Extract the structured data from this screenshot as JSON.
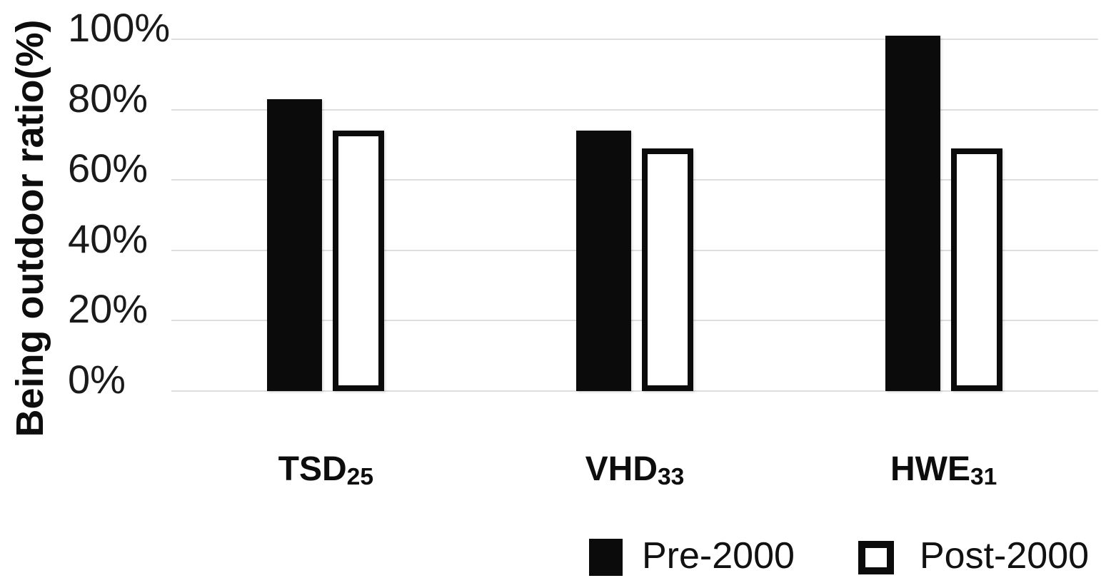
{
  "chart_data": {
    "type": "bar",
    "title": "",
    "xlabel": "",
    "ylabel": "Being outdoor ratio(%)",
    "categories": [
      {
        "base": "TSD",
        "sub": "25"
      },
      {
        "base": "VHD",
        "sub": "33"
      },
      {
        "base": "HWE",
        "sub": "31"
      }
    ],
    "series": [
      {
        "name": "Pre-2000",
        "values": [
          83,
          74,
          101
        ],
        "fill": "#0b0b0b",
        "outline": "#0b0b0b",
        "style": "solid"
      },
      {
        "name": "Post-2000",
        "values": [
          74,
          69,
          69
        ],
        "fill": "#ffffff",
        "outline": "#0b0b0b",
        "style": "outlined"
      }
    ],
    "y_ticks": [
      {
        "label": "0%",
        "value": 0
      },
      {
        "label": "20%",
        "value": 20
      },
      {
        "label": "40%",
        "value": 40
      },
      {
        "label": "60%",
        "value": 60
      },
      {
        "label": "80%",
        "value": 80
      },
      {
        "label": "100%",
        "value": 100
      }
    ],
    "ylim": [
      0,
      101
    ],
    "grid": "horizontal",
    "grid_color": "#dedede",
    "background": "#ffffff",
    "legend_position": "bottom-right"
  }
}
